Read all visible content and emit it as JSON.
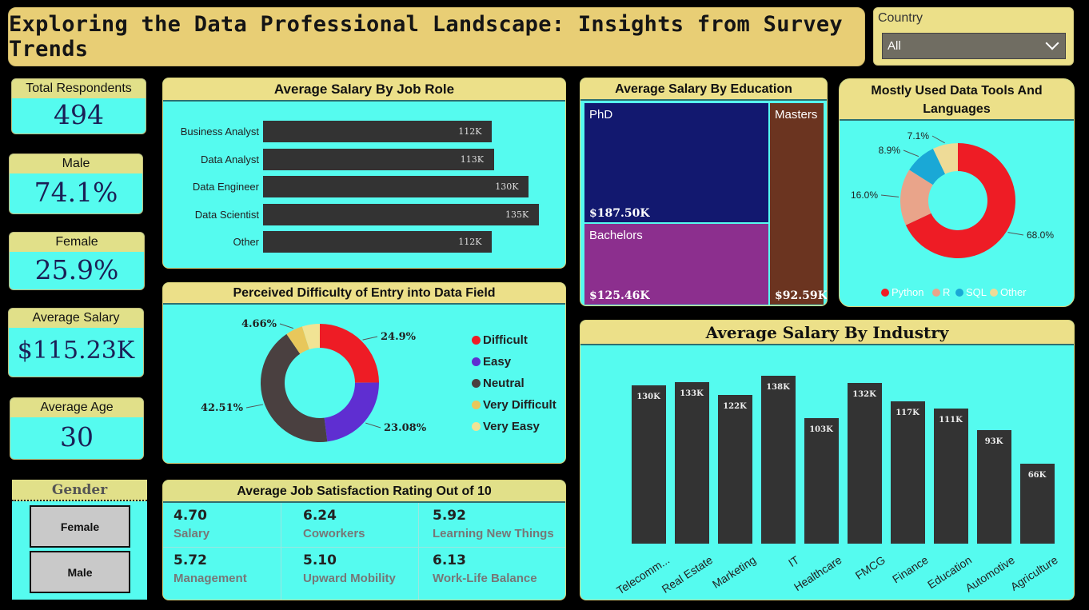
{
  "title": "Exploring the Data Professional Landscape: Insights from Survey Trends",
  "country_slicer": {
    "label": "Country",
    "value": "All"
  },
  "kpis": {
    "respondents": {
      "label": "Total Respondents",
      "value": "494"
    },
    "male": {
      "label": "Male",
      "value": "74.1%"
    },
    "female": {
      "label": "Female",
      "value": "25.9%"
    },
    "salary": {
      "label": "Average Salary",
      "value": "$115.23K"
    },
    "age": {
      "label": "Average Age",
      "value": "30"
    }
  },
  "gender_slicer": {
    "label": "Gender",
    "options": [
      "Female",
      "Male"
    ]
  },
  "charts": {
    "job_role": {
      "title": "Average Salary By Job Role",
      "chart_data": {
        "type": "bar",
        "orientation": "horizontal",
        "categories": [
          "Business Analyst",
          "Data Analyst",
          "Data Engineer",
          "Data Scientist",
          "Other"
        ],
        "values": [
          112,
          113,
          130,
          135,
          112
        ],
        "labels": [
          "112K",
          "113K",
          "130K",
          "135K",
          "112K"
        ],
        "bar_color": "#333333"
      }
    },
    "difficulty": {
      "title": "Perceived Difficulty of Entry into Data Field",
      "chart_data": {
        "type": "pie",
        "donut": true,
        "categories": [
          "Difficult",
          "Easy",
          "Neutral",
          "Very Difficult",
          "Very Easy"
        ],
        "values": [
          24.9,
          23.08,
          42.51,
          4.66,
          4.85
        ],
        "labels": [
          "24.9%",
          "23.08%",
          "42.51%",
          "4.66%",
          ""
        ],
        "colors": [
          "#ee1c25",
          "#5f2ed1",
          "#4a4040",
          "#e8c75b",
          "#f1e394"
        ],
        "legend": "right"
      }
    },
    "education": {
      "title": "Average Salary By Education",
      "chart_data": {
        "type": "treemap",
        "categories": [
          "PhD",
          "Bachelors",
          "Masters"
        ],
        "values": [
          187.5,
          125.46,
          92.59
        ],
        "labels": [
          "$187.50K",
          "$125.46K",
          "$92.59K"
        ],
        "colors": [
          "#12186f",
          "#8c2f8e",
          "#6b3420"
        ]
      }
    },
    "tools": {
      "title": "Mostly Used Data Tools And Languages",
      "chart_data": {
        "type": "pie",
        "donut": true,
        "categories": [
          "Python",
          "R",
          "SQL",
          "Other"
        ],
        "values": [
          68.0,
          16.0,
          8.9,
          7.1
        ],
        "labels": [
          "68.0%",
          "16.0%",
          "8.9%",
          "7.1%"
        ],
        "colors": [
          "#ee1c25",
          "#e9a48a",
          "#1aa8d6",
          "#eedb97"
        ],
        "legend": "bottom"
      }
    },
    "industry": {
      "title": "Average Salary By Industry",
      "chart_data": {
        "type": "bar",
        "categories": [
          "Telecomm...",
          "Real Estate",
          "Marketing",
          "IT",
          "Healthcare",
          "FMCG",
          "Finance",
          "Education",
          "Automotive",
          "Agriculture"
        ],
        "values": [
          130,
          133,
          122,
          138,
          103,
          132,
          117,
          111,
          93,
          66
        ],
        "labels": [
          "130K",
          "133K",
          "122K",
          "138K",
          "103K",
          "132K",
          "117K",
          "111K",
          "93K",
          "66K"
        ],
        "bar_color": "#333333"
      }
    }
  },
  "satisfaction": {
    "title": "Average Job Satisfaction Rating Out of 10",
    "items": [
      {
        "value": "4.70",
        "label": "Salary"
      },
      {
        "value": "6.24",
        "label": "Coworkers"
      },
      {
        "value": "5.92",
        "label": "Learning New Things"
      },
      {
        "value": "5.72",
        "label": "Management"
      },
      {
        "value": "5.10",
        "label": "Upward Mobility"
      },
      {
        "value": "6.13",
        "label": "Work-Life Balance"
      }
    ]
  }
}
